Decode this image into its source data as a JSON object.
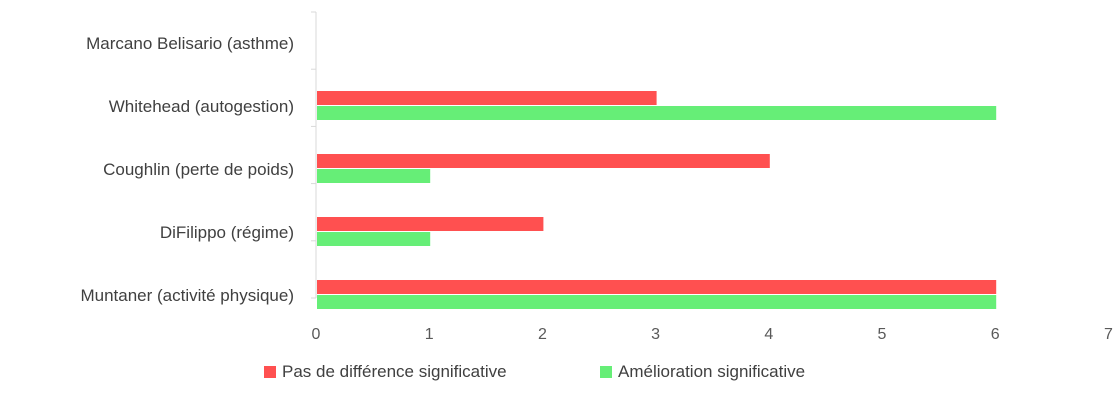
{
  "chart_data": {
    "type": "bar",
    "orientation": "horizontal",
    "categories": [
      "Marcano Belisario (asthme)",
      "Whitehead (autogestion)",
      "Coughlin (perte de poids)",
      "DiFilippo (régime)",
      "Muntaner (activité physique)"
    ],
    "series": [
      {
        "name": "Pas de différence significative",
        "color": "#ff5050",
        "values": [
          0,
          3,
          4,
          2,
          6
        ]
      },
      {
        "name": "Amélioration significative",
        "color": "#66ee77",
        "values": [
          0,
          6,
          1,
          1,
          6
        ]
      }
    ],
    "xlim": [
      0,
      7
    ],
    "xticks": [
      "0",
      "1",
      "2",
      "3",
      "4",
      "5",
      "6",
      "7"
    ],
    "grid": false,
    "legend_position": "bottom"
  }
}
